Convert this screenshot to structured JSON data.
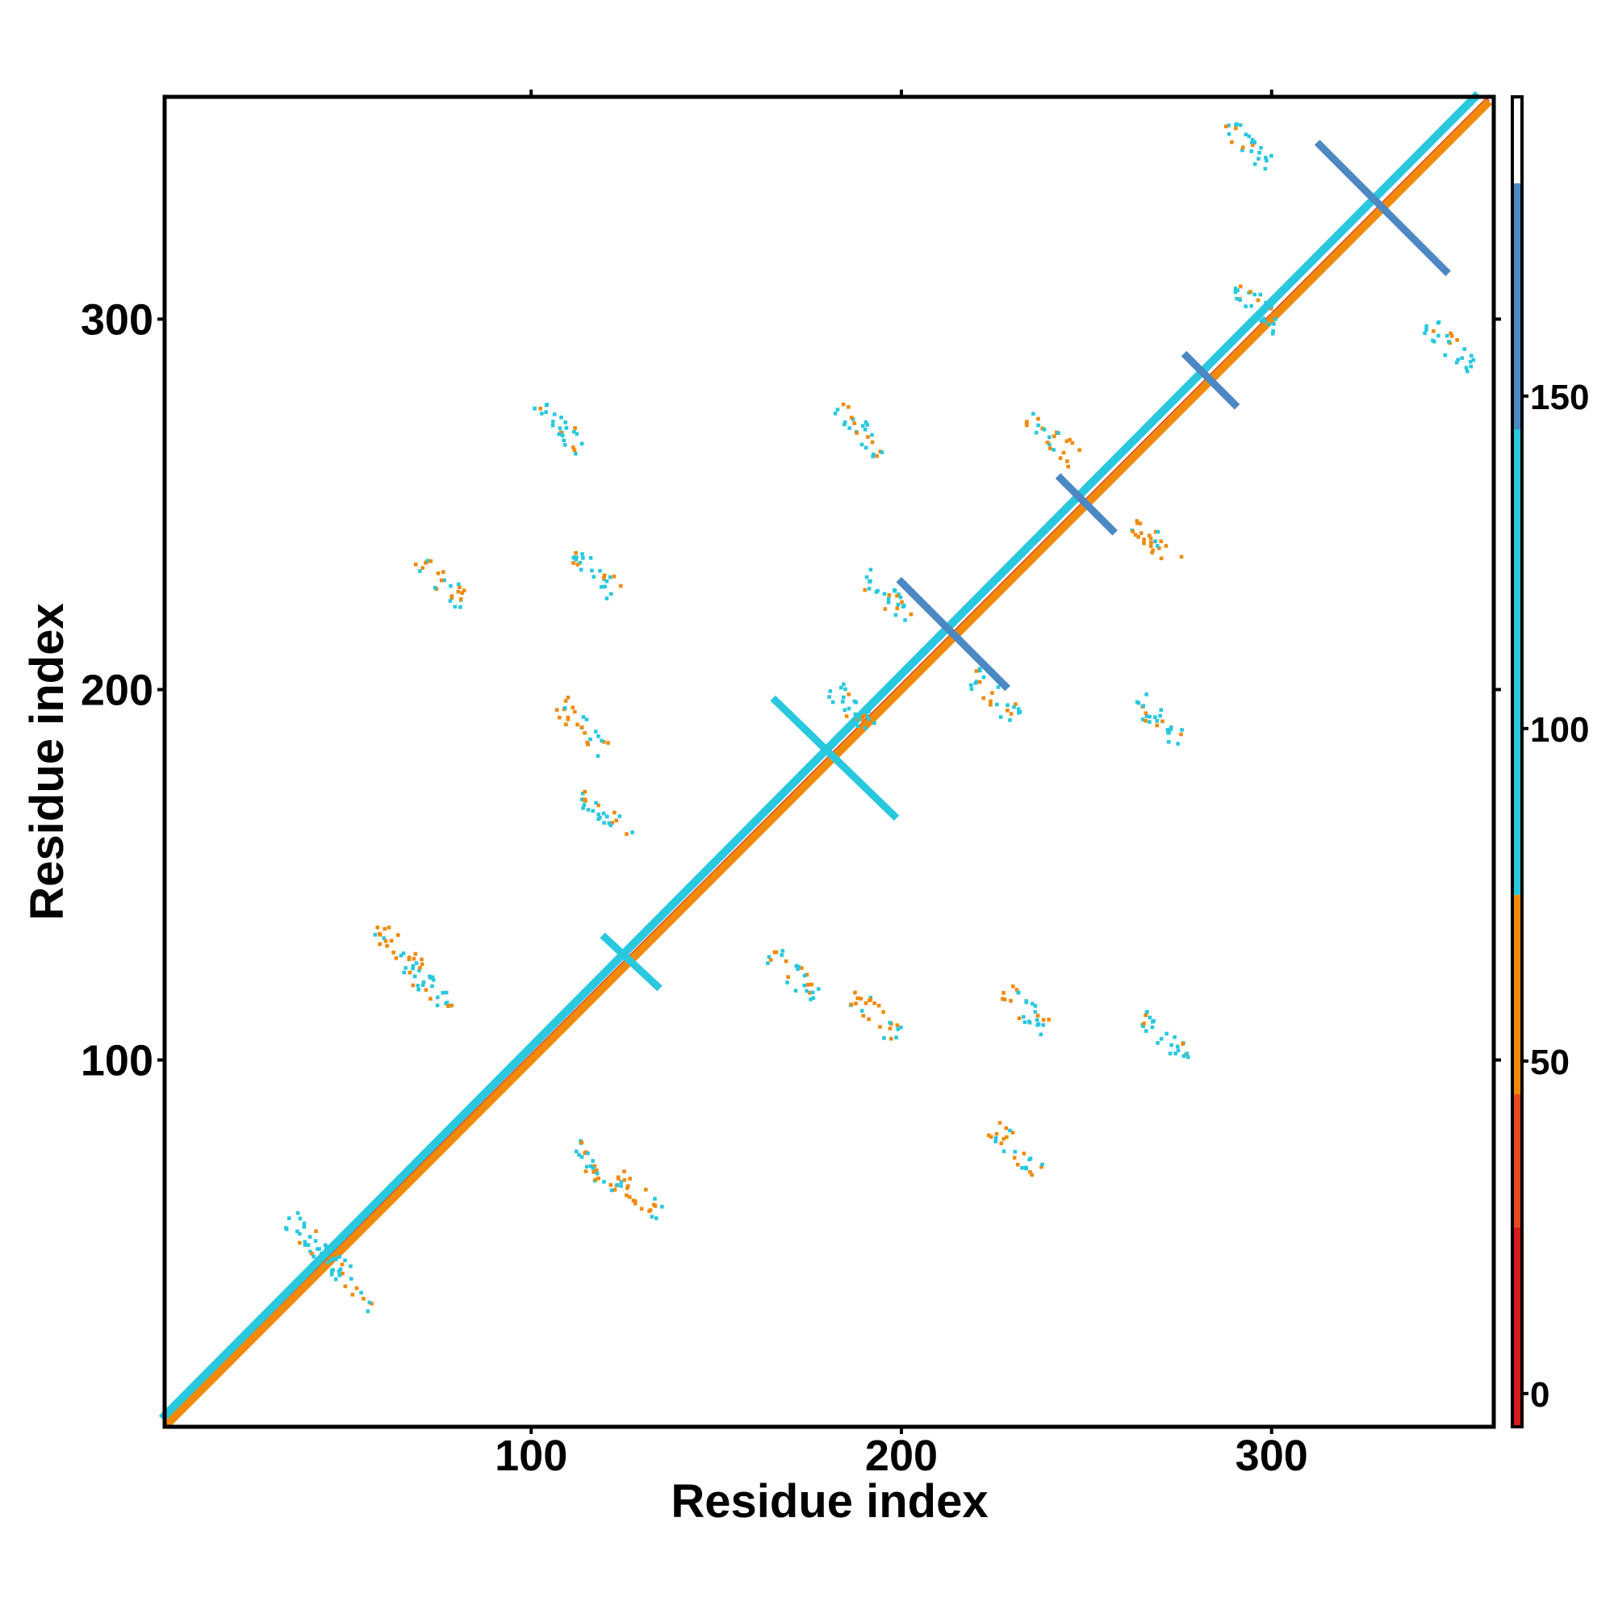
{
  "chart_data": {
    "type": "heatmap",
    "title": "",
    "xlabel": "Residue index",
    "ylabel": "Residue index",
    "xlim": [
      1,
      360
    ],
    "ylim": [
      1,
      360
    ],
    "x_ticks": [
      100,
      200,
      300
    ],
    "y_ticks": [
      100,
      200,
      300
    ],
    "colorbar": {
      "ticks": [
        0,
        50,
        100,
        150
      ],
      "range": [
        -5,
        195
      ],
      "bands": [
        {
          "from": -5,
          "to": 25,
          "color": "#d71a1a"
        },
        {
          "from": 25,
          "to": 45,
          "color": "#e4491c"
        },
        {
          "from": 45,
          "to": 75,
          "color": "#f08a0c"
        },
        {
          "from": 75,
          "to": 145,
          "color": "#29c8de"
        },
        {
          "from": 145,
          "to": 182,
          "color": "#4b88c4"
        },
        {
          "from": 182,
          "to": 195,
          "color": "#ffffff"
        }
      ]
    },
    "segments": [
      {
        "name": "diagonal",
        "from": [
          2,
          3
        ],
        "to": [
          358,
          359
        ],
        "value": 10
      },
      {
        "name": "diagonal-band",
        "from": [
          2,
          2
        ],
        "to": [
          358,
          358
        ],
        "value": 60
      },
      {
        "name": "diagonal-band-upper",
        "from": [
          1,
          4
        ],
        "to": [
          355,
          360
        ],
        "value": 95
      },
      {
        "name": "cross-330-a",
        "from": [
          313,
          347
        ],
        "to": [
          347,
          313
        ],
        "value": 160
      },
      {
        "name": "cross-212-a",
        "from": [
          200,
          229
        ],
        "to": [
          228,
          201
        ],
        "value": 155
      },
      {
        "name": "cross-250-a",
        "from": [
          243,
          257
        ],
        "to": [
          257,
          243
        ],
        "value": 150
      },
      {
        "name": "cross-283-a",
        "from": [
          277,
          290
        ],
        "to": [
          290,
          277
        ],
        "value": 150
      },
      {
        "name": "cross-182-a",
        "from": [
          166,
          197
        ],
        "to": [
          198,
          166
        ],
        "value": 95
      },
      {
        "name": "cross-128-a",
        "from": [
          120,
          133
        ],
        "to": [
          134,
          120
        ],
        "value": 95
      }
    ],
    "clusters": [
      {
        "x": 117,
        "y": 71,
        "value": 100
      },
      {
        "x": 130,
        "y": 63,
        "value": 60
      },
      {
        "x": 72,
        "y": 120,
        "value": 100
      },
      {
        "x": 64,
        "y": 130,
        "value": 60
      },
      {
        "x": 120,
        "y": 166,
        "value": 100
      },
      {
        "x": 114,
        "y": 190,
        "value": 60
      },
      {
        "x": 117,
        "y": 232,
        "value": 100
      },
      {
        "x": 76,
        "y": 229,
        "value": 60
      },
      {
        "x": 108,
        "y": 271,
        "value": 100
      },
      {
        "x": 189,
        "y": 270,
        "value": 100
      },
      {
        "x": 171,
        "y": 123,
        "value": 100
      },
      {
        "x": 193,
        "y": 112,
        "value": 60
      },
      {
        "x": 234,
        "y": 113,
        "value": 100
      },
      {
        "x": 271,
        "y": 106,
        "value": 100
      },
      {
        "x": 231,
        "y": 76,
        "value": 60
      },
      {
        "x": 270,
        "y": 191,
        "value": 100
      },
      {
        "x": 268,
        "y": 240,
        "value": 60
      },
      {
        "x": 241,
        "y": 268,
        "value": 60
      },
      {
        "x": 294,
        "y": 347,
        "value": 100
      },
      {
        "x": 348,
        "y": 293,
        "value": 100
      },
      {
        "x": 297,
        "y": 303,
        "value": 100
      },
      {
        "x": 40,
        "y": 52,
        "value": 100
      },
      {
        "x": 52,
        "y": 40,
        "value": 100
      },
      {
        "x": 186,
        "y": 196,
        "value": 100
      },
      {
        "x": 225,
        "y": 198,
        "value": 100
      },
      {
        "x": 196,
        "y": 225,
        "value": 100
      }
    ]
  }
}
